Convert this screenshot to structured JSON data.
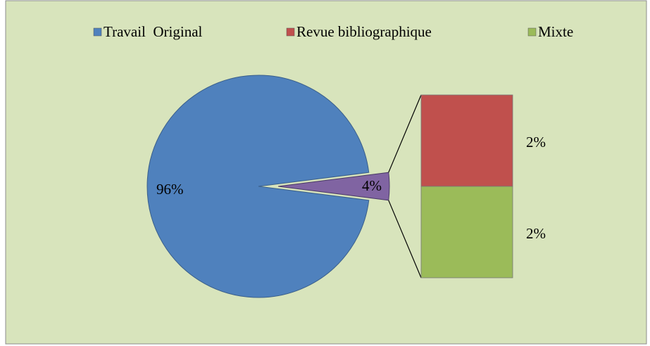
{
  "chart_data": {
    "type": "pie-of-bar",
    "categories": [
      "Travail  Original",
      "Revue bibliographique",
      "Mixte"
    ],
    "values": [
      96,
      2,
      2
    ],
    "value_labels": [
      "96%",
      "2%",
      "2%"
    ],
    "colors": [
      "#4f81bd",
      "#c0504d",
      "#9bbb59"
    ],
    "other": {
      "value": 4,
      "label": "4%",
      "color": "#8064a2"
    },
    "legend": "top"
  }
}
